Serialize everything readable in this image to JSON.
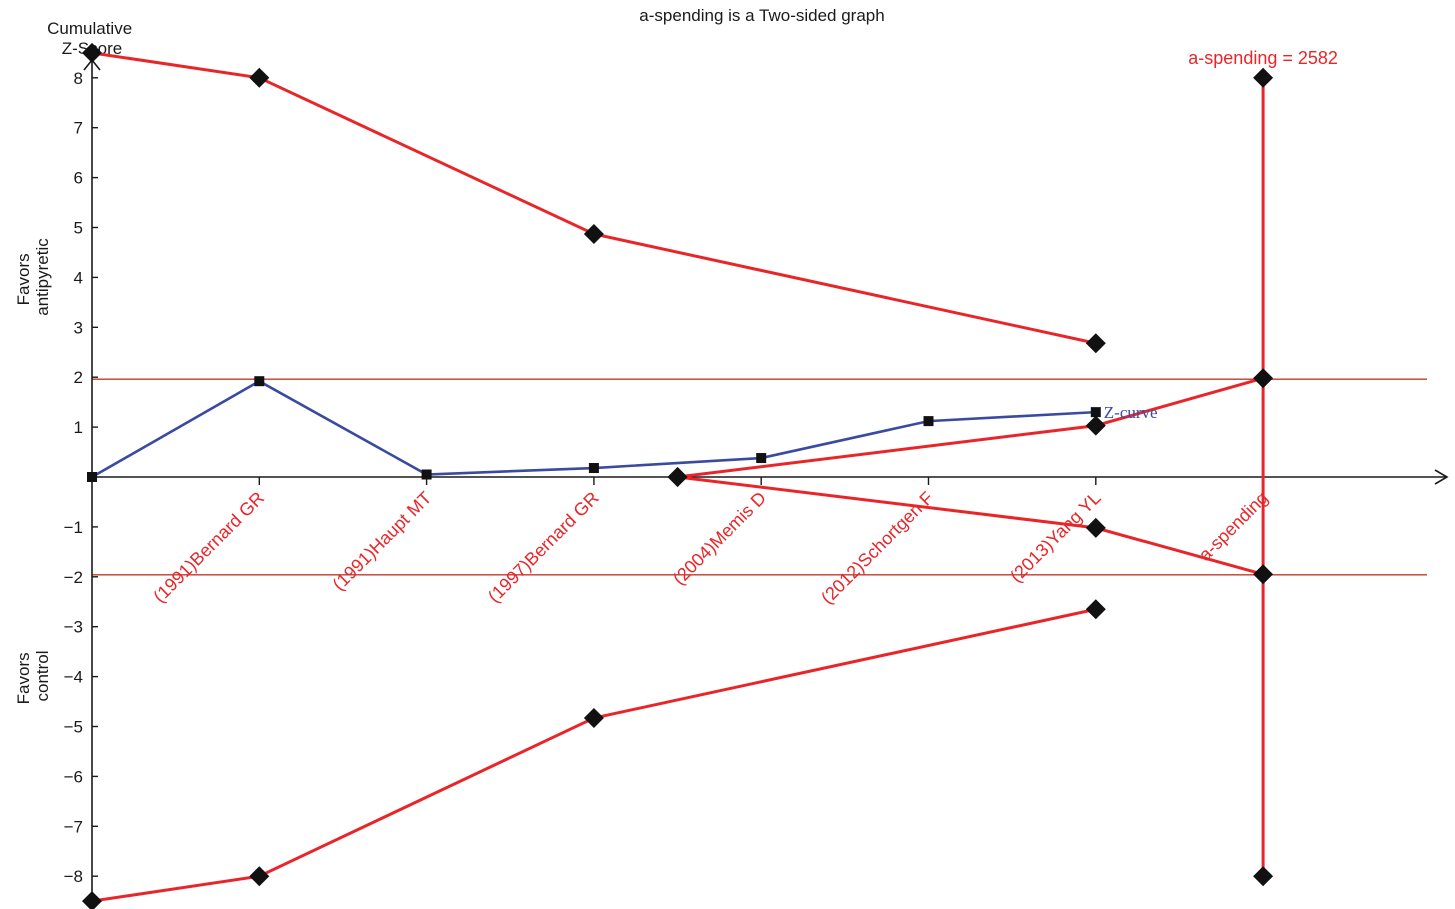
{
  "chart_data": {
    "type": "line",
    "title": "a-spending is a Two-sided graph",
    "y_title": "Cumulative\nZ-Score",
    "y_side_labels": {
      "upper": "Favors\nantipyretic",
      "lower": "Favors\ncontrol"
    },
    "ylim": [
      -8.5,
      8.5
    ],
    "y_ticks": [
      8,
      7,
      6,
      5,
      4,
      3,
      2,
      1,
      -1,
      -2,
      -3,
      -4,
      -5,
      -6,
      -7,
      -8
    ],
    "y_tick_labels": [
      "8",
      "7",
      "6",
      "5",
      "4",
      "3",
      "2",
      "1",
      "−1",
      "−2",
      "−3",
      "−4",
      "−5",
      "−6",
      "−7",
      "−8"
    ],
    "categories": [
      "(1991)Bernard GR",
      "(1991)Haupt MT",
      "(1997)Bernard GR",
      "(2004)Memis D",
      "(2012)Schortgen F",
      "(2013)Yang YL",
      "a-spending"
    ],
    "conventional_boundaries": [
      1.96,
      -1.96
    ],
    "z_curve": {
      "name": "Z-curve",
      "x": [
        0,
        1,
        2,
        3,
        4,
        5,
        6
      ],
      "y": [
        0,
        1.92,
        0.05,
        0.18,
        0.38,
        1.12,
        1.3
      ]
    },
    "monitoring_boundaries": {
      "upper": {
        "x": [
          0,
          1,
          3,
          6
        ],
        "y": [
          8.5,
          8.0,
          4.87,
          2.68
        ]
      },
      "lower": {
        "x": [
          0,
          1,
          3,
          6
        ],
        "y": [
          -8.5,
          -8.0,
          -4.83,
          -2.65
        ]
      }
    },
    "futility_boundaries": {
      "upper": {
        "x": [
          3.5,
          6,
          7
        ],
        "y": [
          0,
          1.03,
          1.98
        ]
      },
      "lower": {
        "x": [
          3.5,
          6,
          7
        ],
        "y": [
          0,
          -1.02,
          -1.95
        ]
      }
    },
    "required_information_size": {
      "label": "a-spending = 2582",
      "x": 7,
      "y_range": [
        -8,
        8
      ]
    },
    "colors": {
      "boundary": "#e8262a",
      "z_curve": "#3a4aa0",
      "axis": "#1a1a1a",
      "category_label": "#e8262a",
      "reference_line": "#c0392b"
    }
  }
}
